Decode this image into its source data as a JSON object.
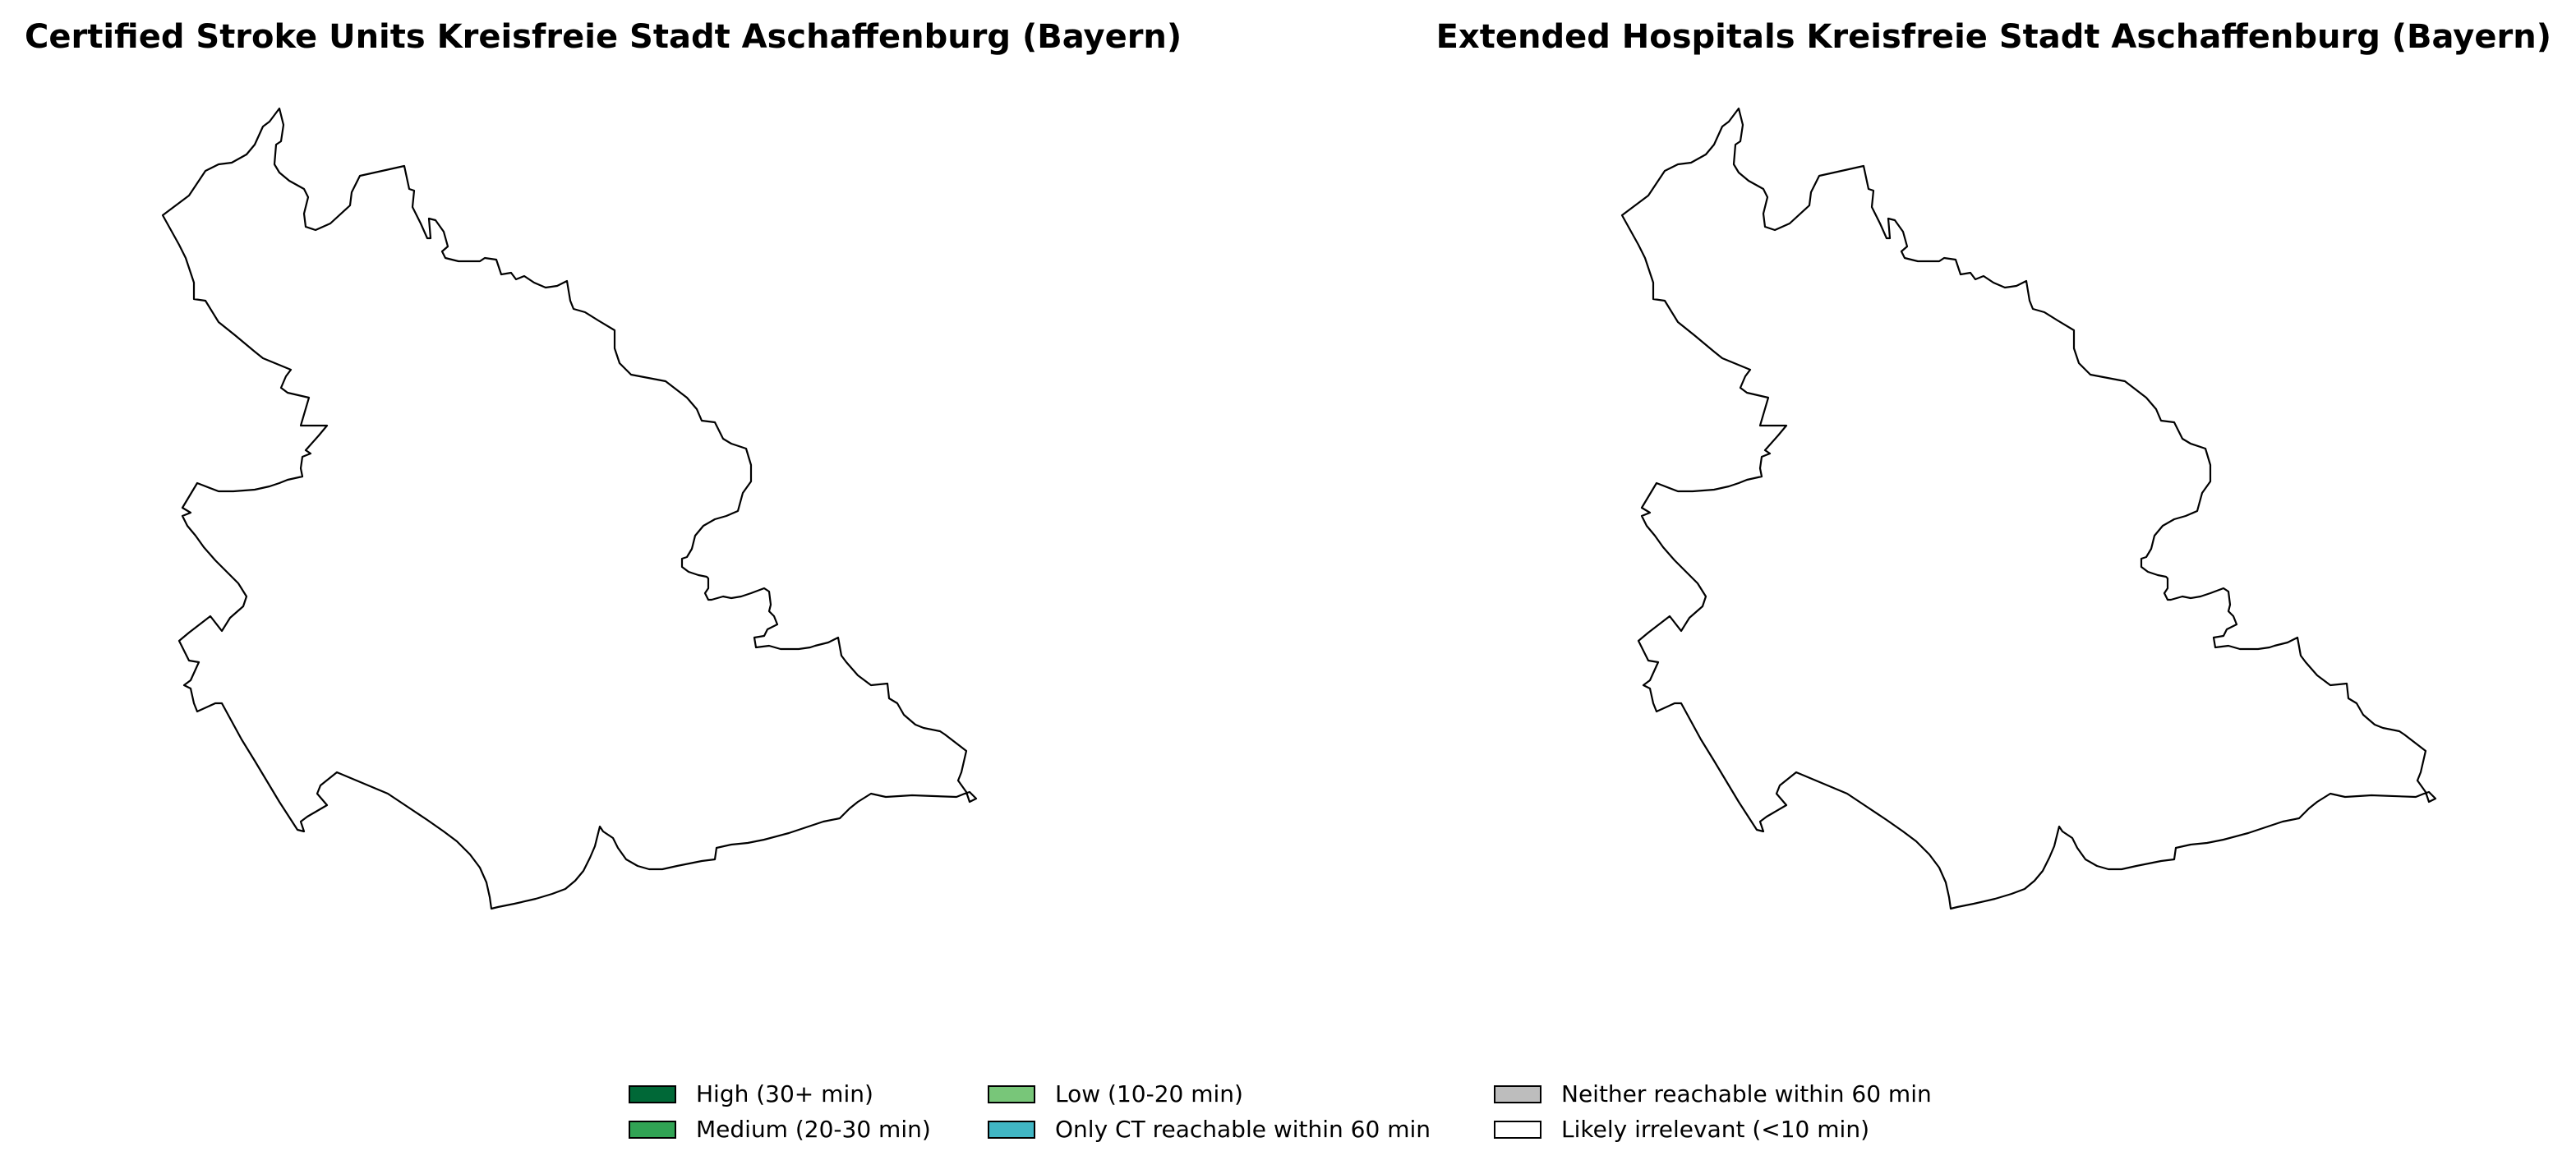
{
  "maps": [
    {
      "title": "Certified Stroke Units Kreisfreie Stadt Aschaffenburg (Bayern)",
      "region_fill": "#ffffff"
    },
    {
      "title": "Extended Hospitals Kreisfreie Stadt Aschaffenburg (Bayern)",
      "region_fill": "#ffffff"
    }
  ],
  "legend": {
    "items": [
      {
        "label": "High (30+ min)",
        "color": "#006837"
      },
      {
        "label": "Medium (20-30 min)",
        "color": "#31a354"
      },
      {
        "label": "Low (10-20 min)",
        "color": "#78c679"
      },
      {
        "label": "Only CT reachable within 60 min",
        "color": "#41b6c4"
      },
      {
        "label": "Neither reachable within 60 min",
        "color": "#bdbdbd"
      },
      {
        "label": "Likely irrelevant (<10 min)",
        "color": "#ffffff"
      }
    ]
  }
}
